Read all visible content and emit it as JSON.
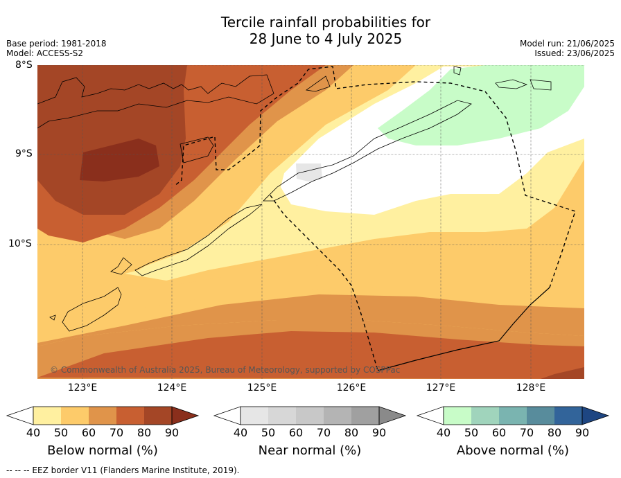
{
  "title_line1": "Tercile rainfall probabilities for",
  "title_line2": "28 June to 4 July 2025",
  "base_period": "Base period: 1981-2018",
  "model": "Model: ACCESS-S2",
  "model_run": "Model run: 21/06/2025",
  "issued": "Issued: 23/06/2025",
  "lat_labels": [
    "8°S",
    "9°S",
    "10°S"
  ],
  "lon_labels": [
    "123°E",
    "124°E",
    "125°E",
    "126°E",
    "127°E",
    "128°E"
  ],
  "copyright": "© Commonwealth of Australia 2025, Bureau of Meteorology, supported by COSPPac",
  "colorbars": [
    {
      "title": "Below normal (%)",
      "ticks": [
        "40",
        "50",
        "60",
        "70",
        "80",
        "90"
      ],
      "colors": [
        "#ffffff",
        "#fff0a0",
        "#fdcb6a",
        "#e0944a",
        "#c85f31",
        "#a44626",
        "#8a2f1c"
      ]
    },
    {
      "title": "Near normal (%)",
      "ticks": [
        "40",
        "50",
        "60",
        "70",
        "80",
        "90"
      ],
      "colors": [
        "#ffffff",
        "#e6e6e6",
        "#d7d7d7",
        "#c8c8c8",
        "#b4b4b4",
        "#a0a0a0",
        "#8a8a8a"
      ]
    },
    {
      "title": "Above normal (%)",
      "ticks": [
        "40",
        "50",
        "60",
        "70",
        "80",
        "90"
      ],
      "colors": [
        "#ffffff",
        "#c8fcc8",
        "#a0d4bc",
        "#7ab4b0",
        "#588c9c",
        "#32649a",
        "#1e4682"
      ]
    }
  ],
  "footer": "--  --  -- EEZ border V11 (Flanders Marine Institute, 2019)."
}
